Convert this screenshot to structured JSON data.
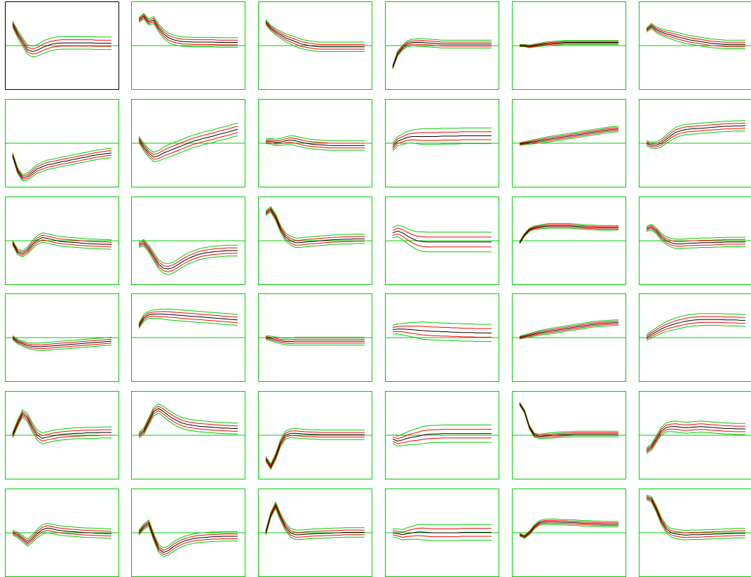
{
  "colors": {
    "panel_border": "#00cc00",
    "first_panel_border": "#000000",
    "zero_line": "#00cc00",
    "median": "#000000",
    "inner_band": "#ff0000",
    "outer_band": "#00cc00"
  },
  "layout_info": {
    "rows": 6,
    "cols": 6
  },
  "chart_data": {
    "type": "line",
    "title": "",
    "xlabel": "",
    "ylabel": "",
    "grid": false,
    "x": [
      0,
      1,
      2,
      3,
      4,
      5,
      6,
      7,
      8,
      9,
      10,
      11,
      12,
      13,
      14,
      15,
      16,
      17,
      18,
      19,
      20
    ],
    "bands": [
      "outer_lower",
      "inner_lower",
      "median",
      "inner_upper",
      "outer_upper"
    ],
    "panels": [
      {
        "ylim": [
          -1,
          1
        ],
        "median": [
          0.55,
          0.3,
          0.1,
          -0.1,
          -0.15,
          -0.12,
          -0.05,
          0,
          0.04,
          0.06,
          0.07,
          0.07,
          0.07,
          0.07,
          0.07,
          0.07,
          0.07,
          0.06,
          0.06,
          0.06,
          0.06
        ],
        "spread": 0.16
      },
      {
        "ylim": [
          -1,
          1
        ],
        "median": [
          0.65,
          0.75,
          0.6,
          0.65,
          0.45,
          0.3,
          0.2,
          0.15,
          0.12,
          0.1,
          0.1,
          0.09,
          0.09,
          0.09,
          0.09,
          0.09,
          0.08,
          0.08,
          0.08,
          0.08,
          0.08
        ],
        "spread": 0.12
      },
      {
        "ylim": [
          -1,
          1
        ],
        "median": [
          0.6,
          0.45,
          0.35,
          0.28,
          0.2,
          0.15,
          0.1,
          0.05,
          0.02,
          0,
          -0.02,
          -0.03,
          -0.03,
          -0.03,
          -0.03,
          -0.03,
          -0.03,
          -0.03,
          -0.03,
          -0.03,
          -0.03
        ],
        "spread": 0.12
      },
      {
        "ylim": [
          -1,
          1
        ],
        "median": [
          -0.55,
          -0.2,
          -0.05,
          0.05,
          0.08,
          0.08,
          0.08,
          0.07,
          0.06,
          0.05,
          0.04,
          0.04,
          0.04,
          0.04,
          0.04,
          0.04,
          0.04,
          0.04,
          0.04,
          0.04,
          0.04
        ],
        "spread": 0.1
      },
      {
        "ylim": [
          -1,
          1
        ],
        "median": [
          0,
          0,
          -0.02,
          0,
          0.02,
          0.04,
          0.05,
          0.06,
          0.07,
          0.08,
          0.08,
          0.08,
          0.08,
          0.08,
          0.08,
          0.08,
          0.08,
          0.08,
          0.08,
          0.08,
          0.08
        ],
        "spread": 0.05
      },
      {
        "ylim": [
          -1,
          1
        ],
        "median": [
          0.4,
          0.5,
          0.4,
          0.35,
          0.3,
          0.27,
          0.23,
          0.2,
          0.17,
          0.14,
          0.12,
          0.1,
          0.08,
          0.06,
          0.05,
          0.04,
          0.03,
          0.03,
          0.03,
          0.03,
          0.03
        ],
        "spread": 0.11
      },
      {
        "ylim": [
          -1,
          1
        ],
        "median": [
          -0.3,
          -0.7,
          -0.88,
          -0.85,
          -0.75,
          -0.65,
          -0.6,
          -0.55,
          -0.53,
          -0.5,
          -0.47,
          -0.45,
          -0.42,
          -0.4,
          -0.37,
          -0.35,
          -0.32,
          -0.3,
          -0.28,
          -0.26,
          -0.25
        ],
        "spread": 0.12
      },
      {
        "ylim": [
          -1,
          1
        ],
        "median": [
          0.1,
          -0.1,
          -0.25,
          -0.35,
          -0.32,
          -0.25,
          -0.2,
          -0.15,
          -0.1,
          -0.05,
          0,
          0.05,
          0.08,
          0.12,
          0.15,
          0.18,
          0.22,
          0.25,
          0.28,
          0.32,
          0.35
        ],
        "spread": 0.16
      },
      {
        "ylim": [
          -1,
          1
        ],
        "median": [
          0.05,
          0.05,
          0.02,
          0.03,
          0.06,
          0.08,
          0.06,
          0.03,
          0,
          -0.02,
          -0.03,
          -0.04,
          -0.05,
          -0.06,
          -0.06,
          -0.06,
          -0.06,
          -0.06,
          -0.06,
          -0.06,
          -0.06
        ],
        "spread": 0.12
      },
      {
        "ylim": [
          -1,
          1
        ],
        "median": [
          -0.1,
          0.05,
          0.1,
          0.15,
          0.17,
          0.17,
          0.17,
          0.17,
          0.17,
          0.17,
          0.18,
          0.18,
          0.18,
          0.18,
          0.19,
          0.19,
          0.19,
          0.19,
          0.19,
          0.19,
          0.19
        ],
        "spread": 0.2
      },
      {
        "ylim": [
          -1,
          1
        ],
        "median": [
          -0.02,
          0,
          0.02,
          0.04,
          0.06,
          0.08,
          0.1,
          0.12,
          0.14,
          0.16,
          0.18,
          0.2,
          0.22,
          0.24,
          0.26,
          0.28,
          0.3,
          0.32,
          0.34,
          0.35,
          0.36
        ],
        "spread": 0.07
      },
      {
        "ylim": [
          -1,
          1
        ],
        "median": [
          0,
          -0.05,
          -0.05,
          0,
          0.1,
          0.2,
          0.28,
          0.32,
          0.35,
          0.36,
          0.37,
          0.38,
          0.39,
          0.4,
          0.41,
          0.42,
          0.43,
          0.43,
          0.44,
          0.44,
          0.45
        ],
        "spread": 0.13
      },
      {
        "ylim": [
          -1,
          1
        ],
        "median": [
          -0.05,
          -0.28,
          -0.33,
          -0.25,
          -0.1,
          0.02,
          0.08,
          0.06,
          0.03,
          0,
          -0.02,
          -0.03,
          -0.04,
          -0.05,
          -0.06,
          -0.07,
          -0.08,
          -0.08,
          -0.09,
          -0.09,
          -0.1
        ],
        "spread": 0.12
      },
      {
        "ylim": [
          -1,
          1
        ],
        "median": [
          -0.1,
          -0.05,
          -0.2,
          -0.4,
          -0.6,
          -0.7,
          -0.72,
          -0.68,
          -0.6,
          -0.52,
          -0.45,
          -0.4,
          -0.35,
          -0.32,
          -0.3,
          -0.28,
          -0.27,
          -0.26,
          -0.25,
          -0.25,
          -0.25
        ],
        "spread": 0.14
      },
      {
        "ylim": [
          -1,
          1
        ],
        "median": [
          0.7,
          0.8,
          0.6,
          0.3,
          0.1,
          0,
          -0.05,
          -0.05,
          -0.03,
          -0.02,
          -0.01,
          0,
          0.01,
          0.02,
          0.03,
          0.03,
          0.04,
          0.04,
          0.05,
          0.05,
          0.05
        ],
        "spread": 0.12
      },
      {
        "ylim": [
          -1,
          1
        ],
        "median": [
          0.2,
          0.25,
          0.2,
          0.12,
          0.05,
          0,
          -0.02,
          -0.03,
          -0.03,
          -0.03,
          -0.03,
          -0.03,
          -0.03,
          -0.03,
          -0.03,
          -0.03,
          -0.03,
          -0.03,
          -0.03,
          -0.03,
          -0.03
        ],
        "spread": 0.25
      },
      {
        "ylim": [
          -1,
          1
        ],
        "median": [
          -0.05,
          0.15,
          0.28,
          0.33,
          0.35,
          0.37,
          0.38,
          0.38,
          0.38,
          0.38,
          0.38,
          0.37,
          0.36,
          0.35,
          0.34,
          0.34,
          0.33,
          0.33,
          0.33,
          0.33,
          0.33
        ],
        "spread": 0.06
      },
      {
        "ylim": [
          -1,
          1
        ],
        "median": [
          0.3,
          0.35,
          0.25,
          0.1,
          0,
          -0.05,
          -0.08,
          -0.08,
          -0.07,
          -0.06,
          -0.06,
          -0.05,
          -0.05,
          -0.05,
          -0.04,
          -0.04,
          -0.03,
          -0.03,
          -0.03,
          -0.03,
          -0.03
        ],
        "spread": 0.12
      },
      {
        "ylim": [
          -1,
          1
        ],
        "median": [
          0,
          -0.1,
          -0.15,
          -0.2,
          -0.22,
          -0.23,
          -0.23,
          -0.22,
          -0.21,
          -0.2,
          -0.19,
          -0.18,
          -0.17,
          -0.16,
          -0.15,
          -0.14,
          -0.13,
          -0.12,
          -0.11,
          -0.1,
          -0.09
        ],
        "spread": 0.1
      },
      {
        "ylim": [
          -1,
          1
        ],
        "median": [
          0.3,
          0.5,
          0.58,
          0.6,
          0.6,
          0.6,
          0.59,
          0.58,
          0.57,
          0.56,
          0.55,
          0.54,
          0.53,
          0.52,
          0.51,
          0.5,
          0.49,
          0.48,
          0.47,
          0.46,
          0.45
        ],
        "spread": 0.14
      },
      {
        "ylim": [
          -1,
          1
        ],
        "median": [
          0,
          -0.02,
          -0.05,
          -0.08,
          -0.1,
          -0.1,
          -0.09,
          -0.09,
          -0.09,
          -0.09,
          -0.09,
          -0.09,
          -0.09,
          -0.09,
          -0.09,
          -0.09,
          -0.09,
          -0.09,
          -0.09,
          -0.09,
          -0.09
        ],
        "spread": 0.1
      },
      {
        "ylim": [
          -1,
          1
        ],
        "median": [
          0.2,
          0.22,
          0.22,
          0.21,
          0.2,
          0.19,
          0.18,
          0.17,
          0.16,
          0.16,
          0.15,
          0.15,
          0.14,
          0.14,
          0.13,
          0.13,
          0.13,
          0.12,
          0.12,
          0.12,
          0.12
        ],
        "spread": 0.22
      },
      {
        "ylim": [
          -1,
          1
        ],
        "median": [
          0,
          0.03,
          0.06,
          0.09,
          0.12,
          0.14,
          0.16,
          0.18,
          0.2,
          0.22,
          0.24,
          0.26,
          0.28,
          0.3,
          0.32,
          0.34,
          0.35,
          0.36,
          0.37,
          0.38,
          0.38
        ],
        "spread": 0.07
      },
      {
        "ylim": [
          -1,
          1
        ],
        "median": [
          0,
          0.08,
          0.15,
          0.22,
          0.28,
          0.32,
          0.36,
          0.39,
          0.42,
          0.44,
          0.45,
          0.46,
          0.46,
          0.46,
          0.46,
          0.46,
          0.45,
          0.45,
          0.45,
          0.44,
          0.44
        ],
        "spread": 0.15
      },
      {
        "ylim": [
          -1,
          1
        ],
        "median": [
          0,
          0.3,
          0.55,
          0.45,
          0.2,
          0,
          -0.08,
          -0.05,
          -0.02,
          0,
          0.02,
          0.03,
          0.04,
          0.05,
          0.05,
          0.06,
          0.06,
          0.06,
          0.07,
          0.07,
          0.07
        ],
        "spread": 0.14
      },
      {
        "ylim": [
          -1,
          1
        ],
        "median": [
          0,
          0.1,
          0.35,
          0.6,
          0.68,
          0.6,
          0.5,
          0.42,
          0.35,
          0.3,
          0.27,
          0.25,
          0.23,
          0.22,
          0.21,
          0.2,
          0.19,
          0.18,
          0.18,
          0.17,
          0.17
        ],
        "spread": 0.14
      },
      {
        "ylim": [
          -1,
          1
        ],
        "median": [
          -0.6,
          -0.8,
          -0.55,
          -0.2,
          0,
          0.05,
          0.05,
          0.04,
          0.03,
          0.02,
          0.02,
          0.01,
          0.01,
          0.01,
          0.01,
          0.01,
          0.01,
          0.01,
          0.01,
          0.01,
          0.01
        ],
        "spread": 0.12
      },
      {
        "ylim": [
          -1,
          1
        ],
        "median": [
          -0.1,
          -0.15,
          -0.12,
          -0.08,
          -0.05,
          -0.03,
          0,
          0.02,
          0.03,
          0.03,
          0.04,
          0.04,
          0.04,
          0.04,
          0.04,
          0.04,
          0.04,
          0.04,
          0.04,
          0.04,
          0.04
        ],
        "spread": 0.22
      },
      {
        "ylim": [
          -1,
          1
        ],
        "median": [
          0.8,
          0.6,
          0.2,
          0,
          -0.03,
          -0.02,
          -0.01,
          0,
          0.01,
          0.02,
          0.02,
          0.03,
          0.03,
          0.03,
          0.03,
          0.03,
          0.03,
          0.03,
          0.03,
          0.03,
          0.03
        ],
        "spread": 0.07
      },
      {
        "ylim": [
          -1,
          1
        ],
        "median": [
          -0.4,
          -0.3,
          -0.1,
          0.1,
          0.2,
          0.22,
          0.22,
          0.2,
          0.19,
          0.2,
          0.21,
          0.22,
          0.21,
          0.2,
          0.19,
          0.18,
          0.17,
          0.17,
          0.16,
          0.16,
          0.16
        ],
        "spread": 0.14
      },
      {
        "ylim": [
          -1,
          1
        ],
        "median": [
          0,
          -0.05,
          -0.15,
          -0.25,
          -0.15,
          -0.02,
          0.08,
          0.12,
          0.1,
          0.07,
          0.05,
          0.04,
          0.03,
          0.02,
          0.01,
          0,
          0,
          -0.01,
          -0.01,
          -0.02,
          -0.02
        ],
        "spread": 0.12
      },
      {
        "ylim": [
          -1,
          1
        ],
        "median": [
          0,
          0.15,
          0.25,
          -0.1,
          -0.4,
          -0.5,
          -0.45,
          -0.35,
          -0.28,
          -0.22,
          -0.18,
          -0.15,
          -0.13,
          -0.12,
          -0.11,
          -0.1,
          -0.1,
          -0.09,
          -0.09,
          -0.09,
          -0.09
        ],
        "spread": 0.12
      },
      {
        "ylim": [
          -1,
          1
        ],
        "median": [
          0,
          0.45,
          0.7,
          0.4,
          0.15,
          0,
          -0.05,
          -0.05,
          -0.04,
          -0.03,
          -0.02,
          -0.02,
          -0.01,
          -0.01,
          0,
          0,
          0.01,
          0.01,
          0.01,
          0.01,
          0.01
        ],
        "spread": 0.12
      },
      {
        "ylim": [
          -1,
          1
        ],
        "median": [
          0,
          -0.02,
          -0.05,
          -0.02,
          0,
          0.02,
          0.02,
          0.01,
          0,
          0,
          0,
          0,
          0,
          0,
          0.01,
          0.01,
          0.01,
          0.01,
          0.01,
          0.01,
          0.01
        ],
        "spread": 0.2
      },
      {
        "ylim": [
          -1,
          1
        ],
        "median": [
          -0.05,
          -0.1,
          0,
          0.15,
          0.25,
          0.28,
          0.28,
          0.28,
          0.27,
          0.27,
          0.26,
          0.26,
          0.25,
          0.24,
          0.24,
          0.23,
          0.23,
          0.22,
          0.22,
          0.22,
          0.22
        ],
        "spread": 0.07
      },
      {
        "ylim": [
          -1,
          1
        ],
        "median": [
          0.9,
          0.85,
          0.6,
          0.3,
          0.1,
          0,
          -0.03,
          -0.05,
          -0.06,
          -0.05,
          -0.05,
          -0.05,
          -0.04,
          -0.04,
          -0.03,
          -0.03,
          -0.02,
          -0.02,
          -0.01,
          -0.01,
          -0.01
        ],
        "spread": 0.12
      }
    ]
  }
}
